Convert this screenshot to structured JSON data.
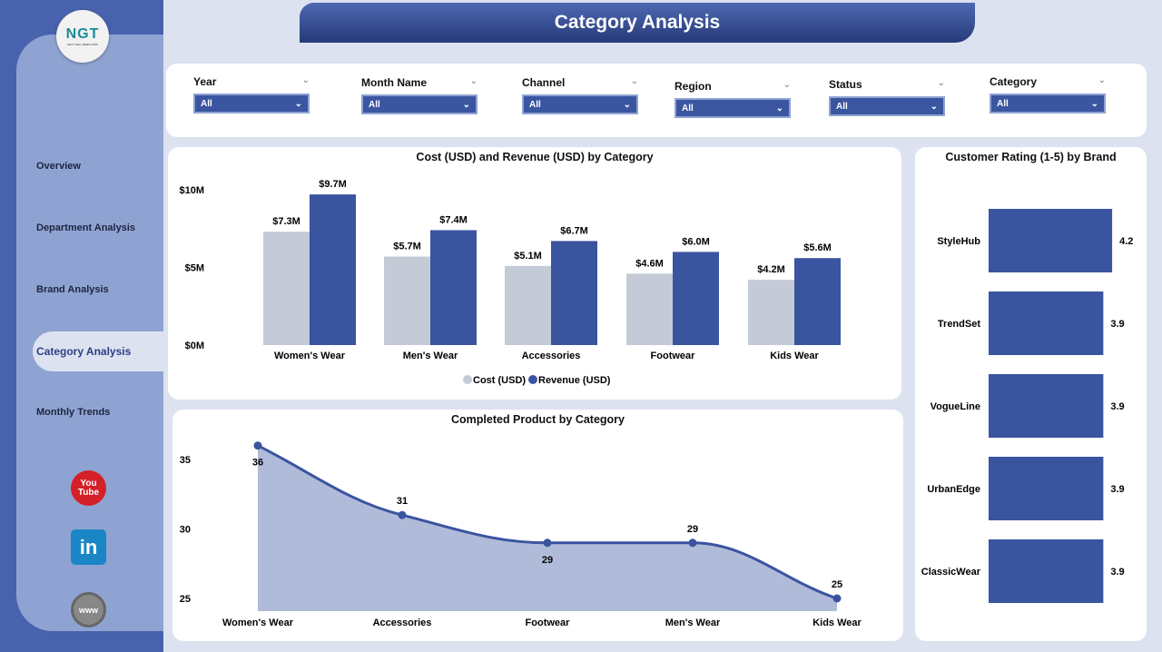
{
  "title": "Category Analysis",
  "logo": {
    "text": "NGT",
    "sub": "NEXT GEN TEMPLATES"
  },
  "nav": [
    {
      "label": "Overview"
    },
    {
      "label": "Department Analysis"
    },
    {
      "label": "Brand Analysis"
    },
    {
      "label": "Category Analysis",
      "active": true
    },
    {
      "label": "Monthly Trends"
    }
  ],
  "social": [
    {
      "icon": "youtube-icon",
      "label": "You Tube"
    },
    {
      "icon": "linkedin-icon",
      "label": "in"
    },
    {
      "icon": "globe-icon",
      "label": "www"
    }
  ],
  "filters": [
    {
      "label": "Year",
      "value": "All"
    },
    {
      "label": "Month Name",
      "value": "All"
    },
    {
      "label": "Channel",
      "value": "All"
    },
    {
      "label": "Region",
      "value": "All"
    },
    {
      "label": "Status",
      "value": "All"
    },
    {
      "label": "Category",
      "value": "All"
    }
  ],
  "colors": {
    "cost": "#c5cad7",
    "revenue": "#3a54a0",
    "area": "#b0bbd9"
  },
  "chart_data": [
    {
      "type": "bar",
      "title": "Cost (USD) and Revenue (USD) by Category",
      "categories": [
        "Women's Wear",
        "Men's Wear",
        "Accessories",
        "Footwear",
        "Kids Wear"
      ],
      "series": [
        {
          "name": "Cost (USD)",
          "values": [
            7.3,
            5.7,
            5.1,
            4.6,
            4.2
          ],
          "labels": [
            "$7.3M",
            "$5.7M",
            "$5.1M",
            "$4.6M",
            "$4.2M"
          ]
        },
        {
          "name": "Revenue (USD)",
          "values": [
            9.7,
            7.4,
            6.7,
            6.0,
            5.6
          ],
          "labels": [
            "$9.7M",
            "$7.4M",
            "$6.7M",
            "$6.0M",
            "$5.6M"
          ]
        }
      ],
      "yticks": [
        {
          "v": 0,
          "label": "$0M"
        },
        {
          "v": 5,
          "label": "$5M"
        },
        {
          "v": 10,
          "label": "$10M"
        }
      ],
      "ylim": [
        0,
        10
      ],
      "legend": "bottom"
    },
    {
      "type": "area",
      "title": "Completed Product by Category",
      "categories": [
        "Women's Wear",
        "Accessories",
        "Footwear",
        "Men's Wear",
        "Kids Wear"
      ],
      "values": [
        36,
        31,
        29,
        29,
        25
      ],
      "yticks": [
        25,
        30,
        35
      ],
      "ylim": [
        24.2,
        36
      ]
    },
    {
      "type": "bar",
      "orientation": "horizontal",
      "title": "Customer Rating (1-5) by Brand",
      "categories": [
        "StyleHub",
        "TrendSet",
        "VogueLine",
        "UrbanEdge",
        "ClassicWear"
      ],
      "values": [
        4.2,
        3.9,
        3.9,
        3.9,
        3.9
      ]
    }
  ]
}
